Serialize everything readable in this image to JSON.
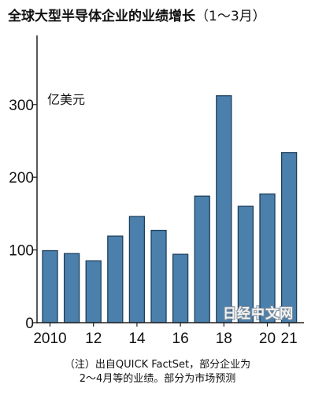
{
  "title": "全球大型半导体企业的业绩增长",
  "title_period": "（1～3月）",
  "watermark": "日经中文网",
  "note_line1": "（注）出自QUICK FactSet，部分企业为",
  "note_line2": "2～4月等的业绩。部分为市场预测",
  "colors": {
    "bar_fill": "#4b80ac",
    "bar_stroke": "#1d3f5c",
    "axis": "#222222"
  },
  "chart_data": {
    "type": "bar",
    "title": "全球大型半导体企业的业绩增长（1～3月）",
    "unit_label": "亿美元",
    "categories": [
      "2010",
      "2011",
      "2012",
      "2013",
      "2014",
      "2015",
      "2016",
      "2017",
      "2018",
      "2019",
      "2020",
      "2021"
    ],
    "x_tick_labels": [
      {
        "category": "2010",
        "label": "2010"
      },
      {
        "category": "2012",
        "label": "12"
      },
      {
        "category": "2014",
        "label": "14"
      },
      {
        "category": "2016",
        "label": "16"
      },
      {
        "category": "2018",
        "label": "18"
      },
      {
        "category": "2020",
        "label": "20"
      },
      {
        "category": "2021",
        "label": "21"
      }
    ],
    "values": [
      99,
      95,
      85,
      119,
      146,
      127,
      94,
      174,
      312,
      160,
      177,
      234
    ],
    "y_ticks": [
      0,
      100,
      200,
      300
    ],
    "ylim": [
      0,
      395
    ],
    "grid": false
  }
}
